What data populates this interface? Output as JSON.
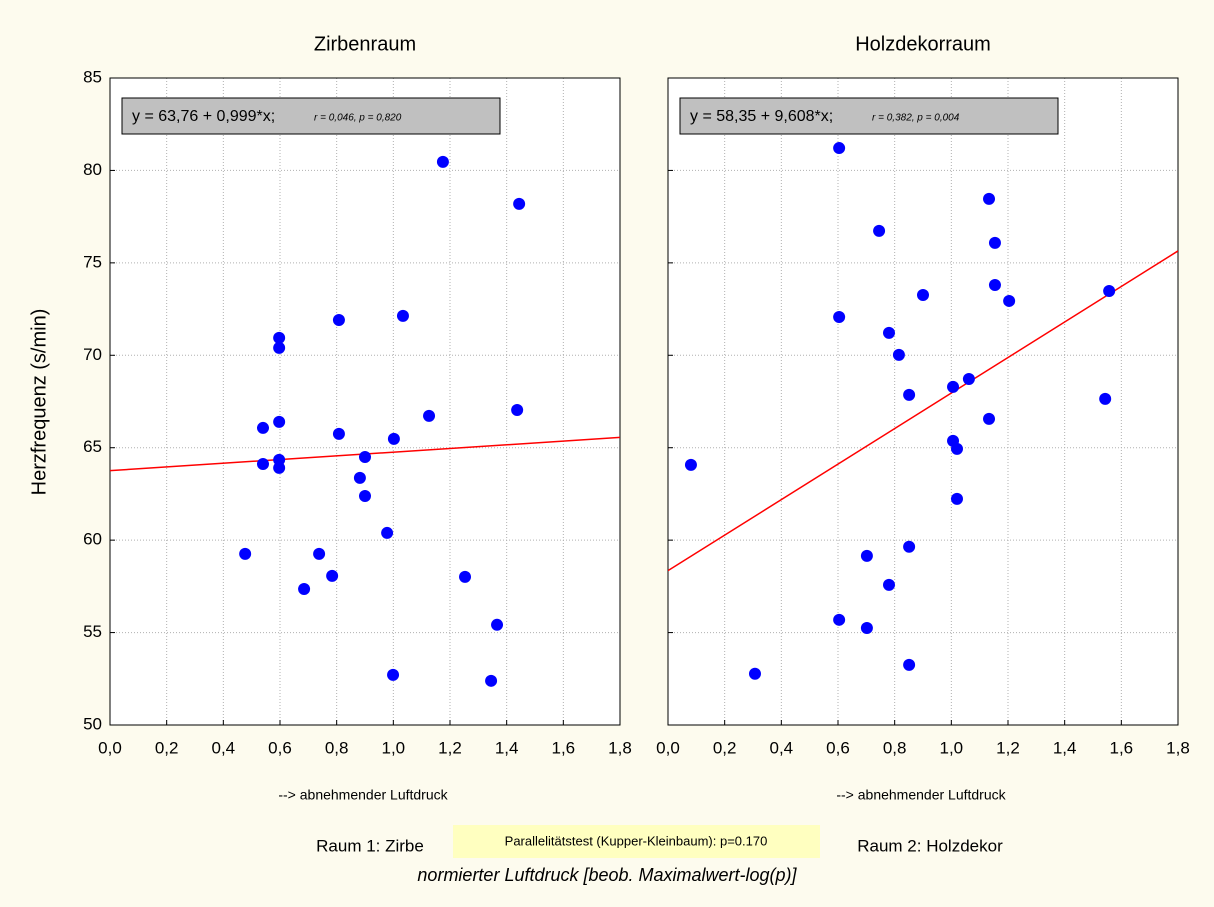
{
  "figure": {
    "ylabel": "Herzfrequenz (s/min)",
    "group1": "Raum 1: Zirbe",
    "test_note": "Parallelitätstest (Kupper-Kleinbaum): p=0.170",
    "group2": "Raum 2: Holzdekor",
    "xlabel": "normierter Luftdruck [beob. Maximalwert-log(p)]"
  },
  "chart_data": [
    {
      "type": "scatter",
      "title": "Zirbenraum",
      "xlabel": "--> abnehmender Luftdruck",
      "equation": "y = 63,76 + 0,999*x;",
      "stats": "r = 0,046, p = 0,820",
      "fit_line": {
        "intercept": 63.76,
        "slope": 0.999,
        "color": "#ff0000"
      },
      "xlim": [
        0,
        1.8
      ],
      "ylim": [
        50,
        85
      ],
      "xticks": [
        {
          "value": 0,
          "label": "0,0"
        },
        {
          "value": 0.2,
          "label": "0,2"
        },
        {
          "value": 0.4,
          "label": "0,4"
        },
        {
          "value": 0.6,
          "label": "0,6"
        },
        {
          "value": 0.8,
          "label": "0,8"
        },
        {
          "value": 1.0,
          "label": "1,0"
        },
        {
          "value": 1.2,
          "label": "1,2"
        },
        {
          "value": 1.4,
          "label": "1,4"
        },
        {
          "value": 1.6,
          "label": "1,6"
        },
        {
          "value": 1.8,
          "label": "1,8"
        }
      ],
      "yticks": [
        50,
        55,
        60,
        65,
        70,
        75,
        80,
        85
      ],
      "ytick_labels": true,
      "grid": true,
      "series": [
        {
          "color": "#0000ff",
          "x": [
            1.175,
            1.444,
            0.597,
            0.597,
            0.808,
            1.034,
            1.126,
            1.437,
            0.54,
            0.597,
            0.808,
            1.002,
            0.54,
            0.597,
            0.597,
            0.9,
            0.882,
            0.9,
            0.477,
            0.738,
            0.685,
            0.784,
            0.978,
            1.253,
            1.366,
            0.999,
            1.345
          ],
          "values": [
            80.46,
            78.19,
            70.94,
            70.4,
            71.91,
            72.13,
            66.72,
            67.04,
            66.07,
            66.4,
            65.75,
            65.48,
            64.12,
            64.34,
            63.91,
            64.5,
            63.37,
            62.39,
            59.26,
            59.26,
            57.36,
            58.07,
            60.39,
            58.01,
            55.42,
            52.71,
            52.39
          ]
        }
      ]
    },
    {
      "type": "scatter",
      "title": "Holzdekorraum",
      "xlabel": "--> abnehmender Luftdruck",
      "equation": "y = 58,35 + 9,608*x;",
      "stats": "r = 0,382, p = 0,004",
      "fit_line": {
        "intercept": 58.35,
        "slope": 9.608,
        "color": "#ff0000"
      },
      "xlim": [
        0,
        1.8
      ],
      "ylim": [
        50,
        85
      ],
      "xticks": [
        {
          "value": 0,
          "label": "0,0"
        },
        {
          "value": 0.2,
          "label": "0,2"
        },
        {
          "value": 0.4,
          "label": "0,4"
        },
        {
          "value": 0.6,
          "label": "0,6"
        },
        {
          "value": 0.8,
          "label": "0,8"
        },
        {
          "value": 1.0,
          "label": "1,0"
        },
        {
          "value": 1.2,
          "label": "1,2"
        },
        {
          "value": 1.4,
          "label": "1,4"
        },
        {
          "value": 1.6,
          "label": "1,6"
        },
        {
          "value": 1.8,
          "label": "1,8"
        }
      ],
      "yticks": [
        50,
        55,
        60,
        65,
        70,
        75,
        80,
        85
      ],
      "ytick_labels": false,
      "grid": true,
      "series": [
        {
          "color": "#0000ff",
          "x": [
            0.604,
            1.133,
            0.745,
            1.154,
            0.604,
            0.9,
            1.154,
            1.204,
            1.557,
            0.78,
            0.815,
            1.062,
            1.006,
            0.851,
            1.543,
            1.133,
            1.006,
            1.02,
            0.081,
            1.02,
            0.851,
            0.702,
            0.78,
            0.604,
            0.702,
            0.851,
            0.307
          ],
          "values": [
            81.21,
            78.46,
            76.73,
            76.08,
            72.07,
            73.26,
            73.8,
            72.94,
            73.48,
            71.21,
            70.02,
            68.72,
            68.29,
            67.86,
            67.64,
            66.56,
            65.37,
            64.94,
            64.07,
            62.23,
            59.64,
            59.15,
            57.58,
            55.69,
            55.25,
            53.25,
            52.77
          ]
        }
      ]
    }
  ]
}
